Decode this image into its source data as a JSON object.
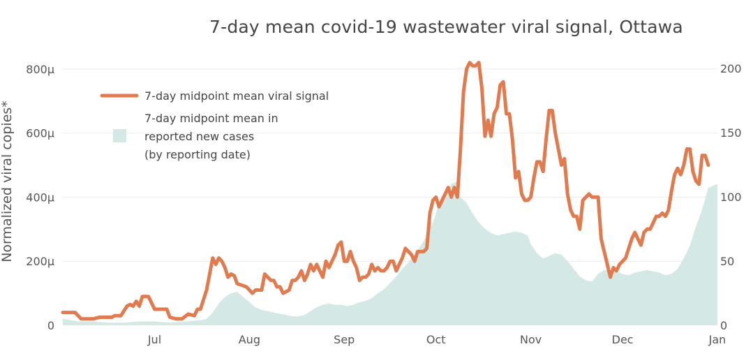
{
  "chart_data": {
    "type": "line",
    "title": "7-day mean covid-19 wastewater viral signal, Ottawa",
    "ylabel": "Normalized viral copies*",
    "y_left": {
      "ticks": [
        "0",
        "200μ",
        "400μ",
        "600μ",
        "800μ"
      ],
      "values": [
        0,
        0.0002,
        0.0004,
        0.0006,
        0.0008
      ],
      "range": [
        0,
        0.00083
      ]
    },
    "y_right": {
      "ticks": [
        "0",
        "50",
        "100",
        "150",
        "200"
      ],
      "values": [
        0,
        50,
        100,
        150,
        200
      ],
      "range": [
        0,
        207
      ]
    },
    "x_labels": [
      "Jul",
      "Aug",
      "Sep",
      "Oct",
      "Nov",
      "Dec",
      "Jan"
    ],
    "x_label_days": [
      30,
      61,
      92,
      122,
      153,
      183,
      214
    ],
    "x_range_days": [
      0,
      214
    ],
    "grid": true,
    "legend_position": "top-left",
    "series": [
      {
        "name": "7-day midpoint mean viral signal",
        "axis": "left",
        "color": "#e07a4f",
        "points": [
          [
            0,
            4e-05
          ],
          [
            4,
            4e-05
          ],
          [
            6,
            2e-05
          ],
          [
            10,
            2e-05
          ],
          [
            12,
            2.5e-05
          ],
          [
            16,
            2.5e-05
          ],
          [
            17,
            3e-05
          ],
          [
            19,
            3e-05
          ],
          [
            21,
            6e-05
          ],
          [
            22,
            6.5e-05
          ],
          [
            23,
            6e-05
          ],
          [
            24,
            7.5e-05
          ],
          [
            25,
            6e-05
          ],
          [
            26,
            9e-05
          ],
          [
            28,
            9e-05
          ],
          [
            30,
            5e-05
          ],
          [
            34,
            5e-05
          ],
          [
            35,
            2.5e-05
          ],
          [
            37,
            2e-05
          ],
          [
            39,
            2e-05
          ],
          [
            41,
            3.5e-05
          ],
          [
            43,
            3e-05
          ],
          [
            44,
            5e-05
          ],
          [
            45,
            5e-05
          ],
          [
            47,
            0.00011
          ],
          [
            48,
            0.00016
          ],
          [
            49,
            0.00021
          ],
          [
            50,
            0.00019
          ],
          [
            51,
            0.00021
          ],
          [
            52,
            0.0002
          ],
          [
            53,
            0.00018
          ],
          [
            54,
            0.00015
          ],
          [
            55,
            0.00016
          ],
          [
            56,
            0.000155
          ],
          [
            57,
            0.00013
          ],
          [
            60,
            0.00012
          ],
          [
            62,
            0.0001
          ],
          [
            63,
            0.00011
          ],
          [
            65,
            0.00011
          ],
          [
            66,
            0.00016
          ],
          [
            67,
            0.00015
          ],
          [
            68,
            0.00014
          ],
          [
            69,
            0.00014
          ],
          [
            70,
            0.00012
          ],
          [
            71,
            0.00012
          ],
          [
            72,
            0.0001
          ],
          [
            74,
            0.00011
          ],
          [
            75,
            0.00014
          ],
          [
            76,
            0.00014
          ],
          [
            77,
            0.00015
          ],
          [
            78,
            0.00017
          ],
          [
            79,
            0.00014
          ],
          [
            80,
            0.00016
          ],
          [
            81,
            0.00019
          ],
          [
            82,
            0.00017
          ],
          [
            83,
            0.00019
          ],
          [
            84,
            0.00017
          ],
          [
            85,
            0.00015
          ],
          [
            86,
            0.0002
          ],
          [
            87,
            0.00018
          ],
          [
            88,
            0.0002
          ],
          [
            89,
            0.00022
          ],
          [
            90,
            0.00025
          ],
          [
            91,
            0.00026
          ],
          [
            92,
            0.0002
          ],
          [
            93,
            0.0002
          ],
          [
            94,
            0.00023
          ],
          [
            95,
            0.0002
          ],
          [
            96,
            0.00018
          ],
          [
            97,
            0.00014
          ],
          [
            98,
            0.00015
          ],
          [
            99,
            0.00015
          ],
          [
            100,
            0.00016
          ],
          [
            101,
            0.00019
          ],
          [
            102,
            0.00017
          ],
          [
            103,
            0.00018
          ],
          [
            104,
            0.00017
          ],
          [
            105,
            0.00017
          ],
          [
            106,
            0.00018
          ],
          [
            107,
            0.0002
          ],
          [
            108,
            0.0002
          ],
          [
            109,
            0.00017
          ],
          [
            110,
            0.00019
          ],
          [
            111,
            0.00021
          ],
          [
            112,
            0.00024
          ],
          [
            113,
            0.00023
          ],
          [
            114,
            0.00022
          ],
          [
            115,
            0.0002
          ],
          [
            116,
            0.00023
          ],
          [
            117,
            0.00023
          ],
          [
            118,
            0.00023
          ],
          [
            119,
            0.00024
          ],
          [
            120,
            0.00035
          ],
          [
            121,
            0.00039
          ],
          [
            122,
            0.0004
          ],
          [
            123,
            0.00037
          ],
          [
            124,
            0.00039
          ],
          [
            125,
            0.00041
          ],
          [
            126,
            0.00043
          ],
          [
            127,
            0.0004
          ],
          [
            128,
            0.00043
          ],
          [
            129,
            0.0004
          ],
          [
            130,
            0.00055
          ],
          [
            131,
            0.00073
          ],
          [
            132,
            0.0008
          ],
          [
            133,
            0.00082
          ],
          [
            134,
            0.00081
          ],
          [
            135,
            0.00081
          ],
          [
            136,
            0.00082
          ],
          [
            137,
            0.00074
          ],
          [
            138,
            0.00059
          ],
          [
            139,
            0.00064
          ],
          [
            140,
            0.00059
          ],
          [
            141,
            0.00066
          ],
          [
            142,
            0.00068
          ],
          [
            143,
            0.00075
          ],
          [
            144,
            0.00076
          ],
          [
            145,
            0.00066
          ],
          [
            146,
            0.00066
          ],
          [
            147,
            0.00058
          ],
          [
            148,
            0.00046
          ],
          [
            149,
            0.00048
          ],
          [
            150,
            0.00041
          ],
          [
            151,
            0.00039
          ],
          [
            152,
            0.00039
          ],
          [
            153,
            0.0004
          ],
          [
            154,
            0.00046
          ],
          [
            155,
            0.00051
          ],
          [
            156,
            0.00051
          ],
          [
            157,
            0.00048
          ],
          [
            158,
            0.00058
          ],
          [
            159,
            0.00067
          ],
          [
            160,
            0.00067
          ],
          [
            161,
            0.0006
          ],
          [
            162,
            0.00055
          ],
          [
            163,
            0.0005
          ],
          [
            164,
            0.00052
          ],
          [
            165,
            0.00041
          ],
          [
            166,
            0.00036
          ],
          [
            167,
            0.00034
          ],
          [
            168,
            0.00034
          ],
          [
            169,
            0.0003
          ],
          [
            170,
            0.00039
          ],
          [
            171,
            0.0004
          ],
          [
            172,
            0.00041
          ],
          [
            173,
            0.0004
          ],
          [
            174,
            0.0004
          ],
          [
            175,
            0.0004
          ],
          [
            176,
            0.00027
          ],
          [
            177,
            0.00023
          ],
          [
            178,
            0.00019
          ],
          [
            179,
            0.00015
          ],
          [
            180,
            0.00018
          ],
          [
            181,
            0.00017
          ],
          [
            182,
            0.00019
          ],
          [
            184,
            0.00021
          ],
          [
            185,
            0.00024
          ],
          [
            186,
            0.00027
          ],
          [
            187,
            0.00029
          ],
          [
            188,
            0.00027
          ],
          [
            189,
            0.00025
          ],
          [
            190,
            0.00029
          ],
          [
            191,
            0.0003
          ],
          [
            192,
            0.0003
          ],
          [
            193,
            0.00032
          ],
          [
            194,
            0.00034
          ],
          [
            195,
            0.00034
          ],
          [
            196,
            0.00035
          ],
          [
            197,
            0.00034
          ],
          [
            198,
            0.00036
          ],
          [
            199,
            0.00042
          ],
          [
            200,
            0.00047
          ],
          [
            201,
            0.00049
          ],
          [
            202,
            0.00047
          ],
          [
            203,
            0.0005
          ],
          [
            204,
            0.00055
          ],
          [
            205,
            0.00055
          ],
          [
            206,
            0.00048
          ],
          [
            207,
            0.00045
          ],
          [
            208,
            0.00044
          ],
          [
            209,
            0.00053
          ],
          [
            210,
            0.00053
          ],
          [
            211,
            0.0005
          ]
        ]
      },
      {
        "name": "7-day midpoint mean in reported new cases (by reporting date)",
        "axis": "right",
        "color": "#d4e9e6",
        "points": [
          [
            0,
            5
          ],
          [
            5,
            3
          ],
          [
            10,
            3
          ],
          [
            15,
            2
          ],
          [
            20,
            2
          ],
          [
            25,
            3
          ],
          [
            30,
            3
          ],
          [
            35,
            2
          ],
          [
            40,
            3
          ],
          [
            45,
            4
          ],
          [
            47,
            5
          ],
          [
            49,
            10
          ],
          [
            51,
            17
          ],
          [
            53,
            22
          ],
          [
            55,
            25
          ],
          [
            57,
            26
          ],
          [
            59,
            22
          ],
          [
            61,
            18
          ],
          [
            63,
            14
          ],
          [
            65,
            12
          ],
          [
            67,
            11
          ],
          [
            69,
            10
          ],
          [
            71,
            9
          ],
          [
            73,
            8
          ],
          [
            75,
            7
          ],
          [
            77,
            7
          ],
          [
            79,
            8
          ],
          [
            81,
            11
          ],
          [
            83,
            14
          ],
          [
            85,
            16
          ],
          [
            87,
            17
          ],
          [
            89,
            16
          ],
          [
            91,
            16
          ],
          [
            93,
            15
          ],
          [
            95,
            16
          ],
          [
            97,
            18
          ],
          [
            99,
            19
          ],
          [
            101,
            21
          ],
          [
            103,
            25
          ],
          [
            105,
            28
          ],
          [
            107,
            33
          ],
          [
            109,
            38
          ],
          [
            111,
            44
          ],
          [
            113,
            49
          ],
          [
            115,
            55
          ],
          [
            117,
            62
          ],
          [
            119,
            70
          ],
          [
            121,
            80
          ],
          [
            123,
            95
          ],
          [
            125,
            100
          ],
          [
            127,
            110
          ],
          [
            129,
            112
          ],
          [
            130,
            100
          ],
          [
            132,
            95
          ],
          [
            134,
            87
          ],
          [
            136,
            80
          ],
          [
            138,
            75
          ],
          [
            140,
            72
          ],
          [
            142,
            70
          ],
          [
            144,
            71
          ],
          [
            146,
            72
          ],
          [
            148,
            73
          ],
          [
            150,
            72
          ],
          [
            152,
            70
          ],
          [
            153,
            63
          ],
          [
            155,
            56
          ],
          [
            157,
            52
          ],
          [
            159,
            54
          ],
          [
            161,
            56
          ],
          [
            163,
            55
          ],
          [
            165,
            50
          ],
          [
            167,
            44
          ],
          [
            169,
            38
          ],
          [
            171,
            35
          ],
          [
            173,
            34
          ],
          [
            175,
            40
          ],
          [
            177,
            43
          ],
          [
            179,
            43
          ],
          [
            181,
            42
          ],
          [
            183,
            40
          ],
          [
            185,
            39
          ],
          [
            187,
            41
          ],
          [
            189,
            42
          ],
          [
            191,
            43
          ],
          [
            193,
            42
          ],
          [
            195,
            41
          ],
          [
            197,
            39
          ],
          [
            199,
            40
          ],
          [
            201,
            44
          ],
          [
            203,
            52
          ],
          [
            205,
            62
          ],
          [
            207,
            77
          ],
          [
            209,
            90
          ],
          [
            211,
            107
          ],
          [
            214,
            110
          ]
        ]
      }
    ]
  },
  "legend": {
    "line_label": "7-day midpoint mean viral signal",
    "area_label_1": "7-day midpoint mean in",
    "area_label_2": "reported new cases",
    "area_label_3": "(by reporting date)"
  }
}
